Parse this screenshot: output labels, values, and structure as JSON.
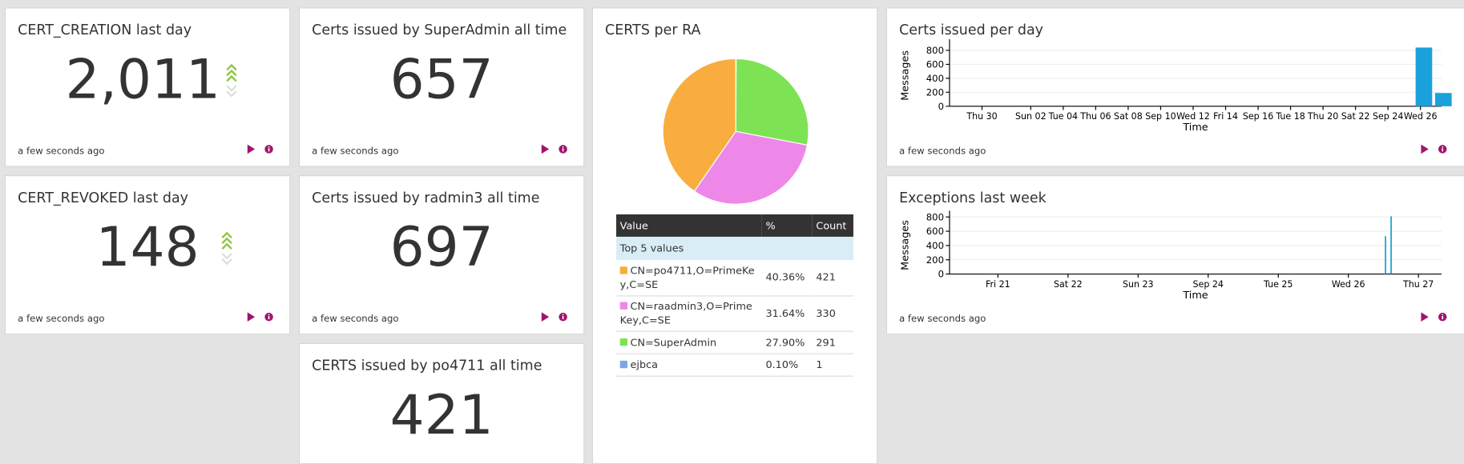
{
  "widgets": [
    {
      "title": "CERT_CREATION last day",
      "value": "2,011",
      "updated": "a few seconds ago"
    },
    {
      "title": "CERT_REVOKED last day",
      "value": 148,
      "updated": "a few seconds ago"
    },
    {
      "title": "Certs issued by SuperAdmin all time",
      "value": 657,
      "updated": "a few seconds ago"
    },
    {
      "title": "Certs issued by radmin3 all time",
      "value": 697,
      "updated": "a few seconds ago"
    },
    {
      "title": "CERTS issued by po4711 all time",
      "value": 421
    }
  ],
  "pie_widget": {
    "title": "CERTS per RA",
    "columns": [
      "Value",
      "%",
      "Count"
    ],
    "group": "Top 5 values",
    "rows": [
      {
        "label": "CN=po4711,O=PrimeKey,C=SE",
        "percent": "40.36%",
        "count": 421,
        "color": "#f9ad3f"
      },
      {
        "label": "CN=raadmin3,O=PrimeKey,C=SE",
        "percent": "31.64%",
        "count": 330,
        "color": "#ee88e8"
      },
      {
        "label": "CN=SuperAdmin",
        "percent": "27.90%",
        "count": 291,
        "color": "#7ee354"
      },
      {
        "label": "ejbca",
        "percent": "0.10%",
        "count": 1,
        "color": "#7aa8e6"
      }
    ]
  },
  "chart_widgets": [
    {
      "title": "Certs issued per day",
      "updated": "a few seconds ago",
      "chart_data": {
        "type": "bar",
        "x_label": "Time",
        "y_label": "Messages",
        "x": [
          26.7,
          27.9
        ],
        "values": [
          840,
          190
        ],
        "xlim": [
          -2,
          28.3
        ],
        "xticks": [
          {
            "value": 0,
            "label": "Thu 30"
          },
          {
            "value": 3,
            "label": "Sun 02"
          },
          {
            "value": 5,
            "label": "Tue 04"
          },
          {
            "value": 7,
            "label": "Thu 06"
          },
          {
            "value": 9,
            "label": "Sat 08"
          },
          {
            "value": 11,
            "label": "Sep 10"
          },
          {
            "value": 13,
            "label": "Wed 12"
          },
          {
            "value": 15,
            "label": "Fri 14"
          },
          {
            "value": 17,
            "label": "Sep 16"
          },
          {
            "value": 19,
            "label": "Tue 18"
          },
          {
            "value": 21,
            "label": "Thu 20"
          },
          {
            "value": 23,
            "label": "Sat 22"
          },
          {
            "value": 25,
            "label": "Sep 24"
          },
          {
            "value": 27,
            "label": "Wed 26"
          }
        ],
        "ylim": [
          0,
          880
        ],
        "yticks": [
          0,
          200,
          400,
          600,
          800
        ],
        "color": "#1aa1dc",
        "grid": true
      }
    },
    {
      "title": "Exceptions last week",
      "updated": "a few seconds ago",
      "chart_data": {
        "type": "bar",
        "x_label": "Time",
        "y_label": "Messages",
        "x": [
          5.52,
          5.6
        ],
        "values": [
          530,
          810
        ],
        "xlim": [
          -0.69,
          6.33
        ],
        "xticks": [
          {
            "value": 0,
            "label": "Fri 21"
          },
          {
            "value": 1,
            "label": "Sat 22"
          },
          {
            "value": 2,
            "label": "Sun 23"
          },
          {
            "value": 3,
            "label": "Sep 24"
          },
          {
            "value": 4,
            "label": "Tue 25"
          },
          {
            "value": 5,
            "label": "Wed 26"
          },
          {
            "value": 6,
            "label": "Thu 27"
          }
        ],
        "ylim": [
          0,
          810
        ],
        "yticks": [
          0,
          200,
          400,
          600,
          800
        ],
        "color": "#1aa1dc",
        "grid": true
      }
    }
  ]
}
